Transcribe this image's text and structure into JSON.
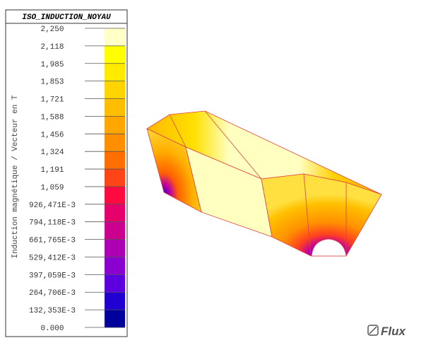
{
  "legend": {
    "title": "ISO_INDUCTION_NOYAU",
    "quantity_label": "Induction magnétique / Vecteur en T",
    "levels": [
      "2,250",
      "2,118",
      "1,985",
      "1,853",
      "1,721",
      "1,588",
      "1,456",
      "1,324",
      "1,191",
      "1,059",
      "926,471E-3",
      "794,118E-3",
      "661,765E-3",
      "529,412E-3",
      "397,059E-3",
      "264,706E-3",
      "132,353E-3",
      "0.000"
    ],
    "colors": [
      "#ffffc8",
      "#ffff00",
      "#ffea00",
      "#ffd400",
      "#ffbe00",
      "#ffa600",
      "#ff8e00",
      "#ff6e00",
      "#ff4418",
      "#ff0a40",
      "#e6006c",
      "#cc008e",
      "#ac00b2",
      "#8a00d0",
      "#5c00e0",
      "#2000d0",
      "#00009c"
    ]
  },
  "logo": "Flux"
}
